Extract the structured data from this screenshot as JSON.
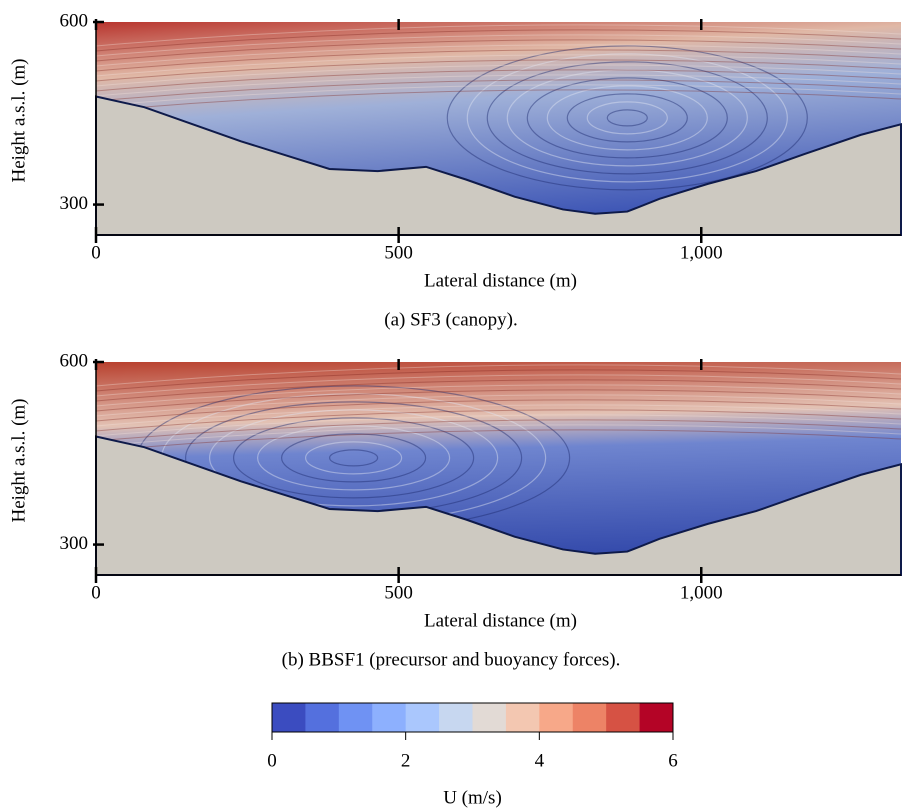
{
  "chart_data": [
    {
      "type": "streamline",
      "title": "(a) SF3 (canopy).",
      "xlabel": "Lateral distance (m)",
      "ylabel": "Height a.s.l. (m)",
      "xlim": [
        0,
        1330
      ],
      "ylim": [
        250,
        600
      ],
      "xticks": [
        0,
        500,
        {
          "value": 1000,
          "label": "1,000"
        }
      ],
      "yticks": [
        300,
        600
      ]
    },
    {
      "type": "streamline",
      "title": "(b) BBSF1 (precursor and buoyancy forces).",
      "xlabel": "Lateral distance (m)",
      "ylabel": "Height a.s.l. (m)",
      "xlim": [
        0,
        1330
      ],
      "ylim": [
        250,
        600
      ],
      "xticks": [
        0,
        500,
        {
          "value": 1000,
          "label": "1,000"
        }
      ],
      "yticks": [
        300,
        600
      ]
    },
    {
      "type": "colorbar",
      "xlabel": "U (m/s)",
      "xlim": [
        0,
        6
      ],
      "xticks": [
        0,
        2,
        4,
        6
      ],
      "colors": [
        "#3b4cc0",
        "#5470de",
        "#6f92f3",
        "#8db0fe",
        "#aac7fd",
        "#c7d7f0",
        "#e2dad5",
        "#f3c7b1",
        "#f7a889",
        "#ed8366",
        "#d65244",
        "#b40426"
      ]
    }
  ]
}
